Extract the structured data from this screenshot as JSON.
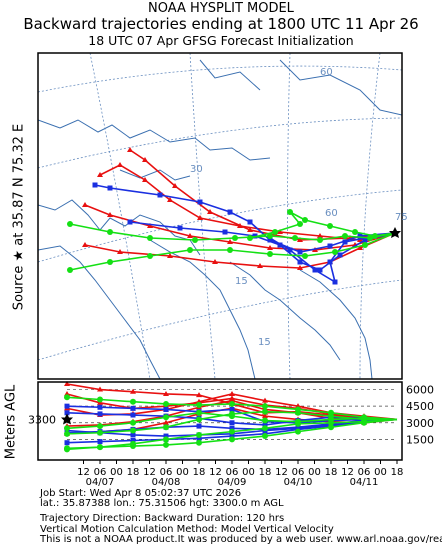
{
  "header": {
    "line1": "NOAA HYSPLIT MODEL",
    "line2": "Backward trajectories ending at 1800 UTC 11 Apr 26",
    "line3": "18 UTC 07 Apr    GFSG  Forecast Initialization"
  },
  "source_label": "Source ★ at    35.87 N    75.32 E",
  "map": {
    "lat_labels": [
      "60",
      "30",
      "15",
      "60",
      "75",
      "15"
    ]
  },
  "height_panel": {
    "ylabel": "Meters AGL",
    "start_height": "3300",
    "right_ticks": [
      "6000",
      "4500",
      "3000",
      "1500"
    ],
    "hour_ticks": [
      "12",
      "06",
      "00",
      "18",
      "12",
      "06",
      "00",
      "18",
      "12",
      "06",
      "00",
      "18",
      "12",
      "06",
      "00",
      "18",
      "12",
      "06",
      "00",
      "18"
    ],
    "date_ticks": [
      "04/11",
      "04/10",
      "04/09",
      "04/08",
      "04/07"
    ]
  },
  "info": {
    "line1": "Job Start: Wed Apr  8 05:02:37 UTC 2026",
    "line2": "lat.: 35.87388    lon.: 75.31506    hgt: 3300.0 m AGL",
    "line3": "Trajectory Direction: Backward        Duration: 120 hrs",
    "line4": "Vertical Motion Calculation Method: Model Vertical Velocity",
    "line5": "This is not a NOAA product.It was produced by a web user. www.arl.noaa.gov/ready"
  },
  "colors": {
    "red": "#e81010",
    "blue": "#1a2fe0",
    "green": "#14e014",
    "map": "#3a6fb0",
    "grid": "#6a8fc0"
  },
  "chart_data": {
    "type": "line",
    "title": "Backward trajectories ending at 1800 UTC 11 Apr 26",
    "ylabel": "Meters AGL",
    "ylim": [
      0,
      6500
    ],
    "y_ticks": [
      1500,
      3000,
      4500,
      6000
    ],
    "x_hours": [
      0,
      -12,
      -24,
      -36,
      -48,
      -60,
      -72,
      -84,
      -96,
      -108,
      -120
    ],
    "series": [
      {
        "color": "red",
        "heights": [
          3300,
          3400,
          3700,
          4000,
          3900,
          4700,
          5500,
          5600,
          5800,
          6000,
          6500
        ]
      },
      {
        "color": "red",
        "heights": [
          3300,
          3500,
          3800,
          4300,
          4600,
          5200,
          4800,
          4500,
          4300,
          4800,
          5600
        ]
      },
      {
        "color": "red",
        "heights": [
          3300,
          3600,
          3900,
          4500,
          5000,
          5600,
          4900,
          4200,
          3800,
          3700,
          4300
        ]
      },
      {
        "color": "red",
        "heights": [
          3300,
          3200,
          3400,
          3900,
          4200,
          5000,
          4400,
          3600,
          3100,
          2800,
          2700
        ]
      },
      {
        "color": "red",
        "heights": [
          3300,
          3000,
          3100,
          3300,
          3600,
          4300,
          3800,
          3000,
          2400,
          2200,
          2000
        ]
      },
      {
        "color": "blue",
        "heights": [
          3300,
          3300,
          3200,
          3000,
          3100,
          4200,
          4000,
          4200,
          4300,
          4400,
          4500
        ]
      },
      {
        "color": "blue",
        "heights": [
          3300,
          3200,
          2900,
          2600,
          2400,
          2500,
          2700,
          2600,
          2400,
          2200,
          2100
        ]
      },
      {
        "color": "blue",
        "heights": [
          3300,
          3100,
          2700,
          2400,
          2000,
          1800,
          1600,
          1500,
          1400,
          1300,
          1200
        ]
      },
      {
        "color": "blue",
        "heights": [
          3300,
          3200,
          2800,
          2500,
          2300,
          2000,
          1900,
          1800,
          1900,
          2100,
          2300
        ]
      },
      {
        "color": "blue",
        "heights": [
          3300,
          3400,
          3500,
          3200,
          2800,
          3000,
          3400,
          3600,
          3700,
          3800,
          3900
        ]
      },
      {
        "color": "green",
        "heights": [
          3300,
          3500,
          3900,
          4200,
          4500,
          4700,
          4600,
          4700,
          4900,
          5100,
          5300
        ]
      },
      {
        "color": "green",
        "heights": [
          3300,
          3300,
          3600,
          3900,
          4000,
          3800,
          3300,
          2600,
          2300,
          2100,
          2000
        ]
      },
      {
        "color": "green",
        "heights": [
          3300,
          3100,
          3000,
          2900,
          2500,
          2200,
          1900,
          1500,
          1100,
          800,
          600
        ]
      },
      {
        "color": "green",
        "heights": [
          3300,
          3000,
          2600,
          2200,
          1800,
          1500,
          1200,
          1000,
          900,
          800,
          700
        ]
      },
      {
        "color": "green",
        "heights": [
          3300,
          3400,
          3300,
          3100,
          3200,
          3600,
          3900,
          3500,
          3000,
          2700,
          2500
        ]
      }
    ]
  }
}
